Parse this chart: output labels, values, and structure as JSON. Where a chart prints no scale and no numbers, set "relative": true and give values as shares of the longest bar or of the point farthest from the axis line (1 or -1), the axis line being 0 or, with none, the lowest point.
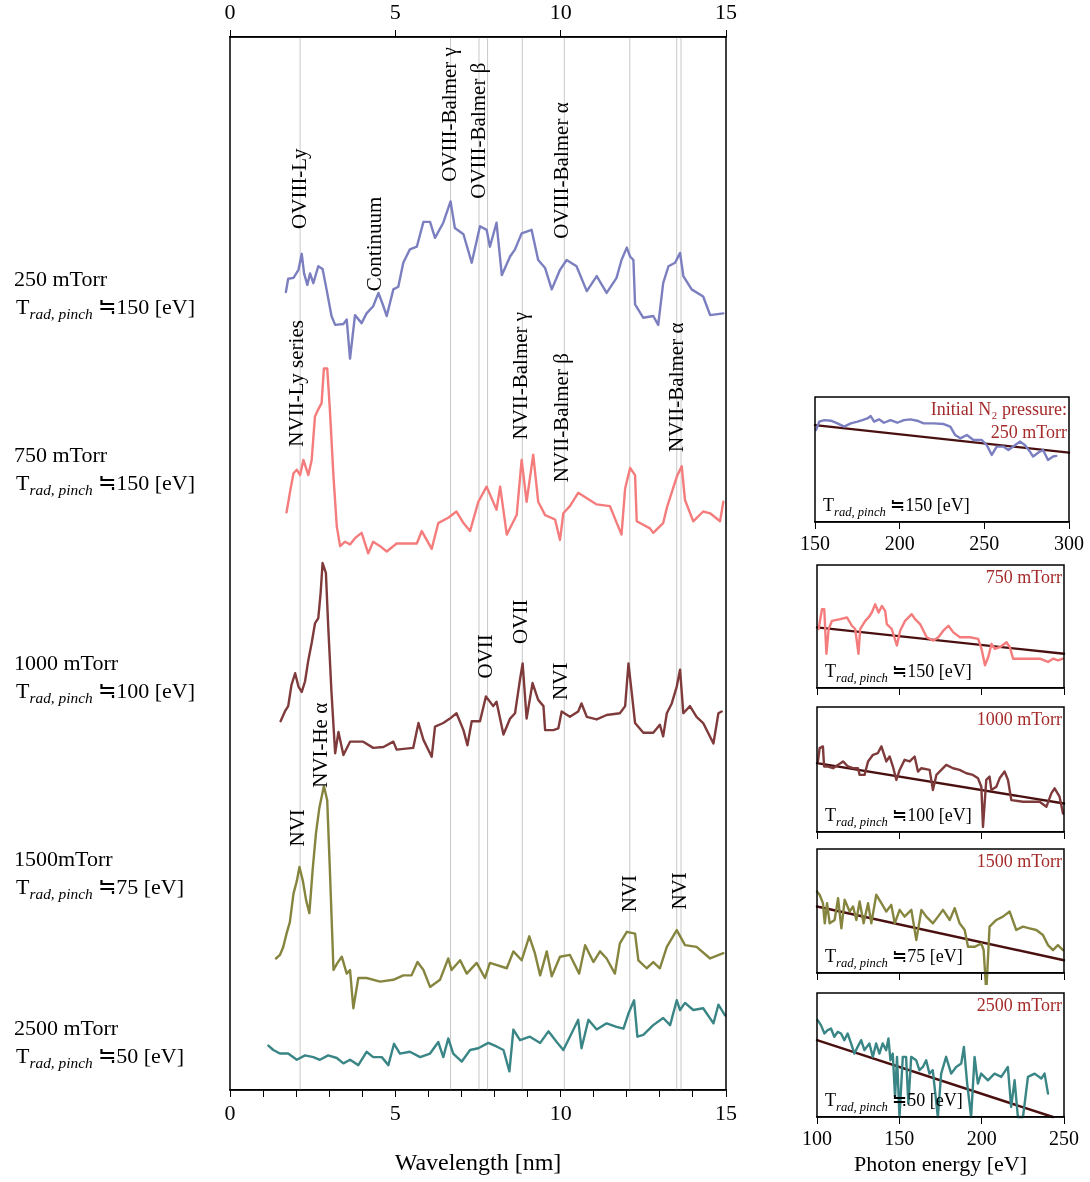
{
  "chart_data": [
    {
      "type": "line",
      "xlabel": "Wavelength [nm]",
      "relative": true,
      "xlim": [
        0,
        15
      ],
      "xticks": [
        0,
        {
          "value": 1,
          "label": null
        },
        {
          "value": 2,
          "label": null
        },
        {
          "value": 3,
          "label": null
        },
        {
          "value": 4,
          "label": null
        },
        5,
        {
          "value": 6,
          "label": null
        },
        {
          "value": 7,
          "label": null
        },
        {
          "value": 8,
          "label": null
        },
        {
          "value": 9,
          "label": null
        },
        10,
        {
          "value": 11,
          "label": null
        },
        {
          "value": 12,
          "label": null
        },
        {
          "value": 13,
          "label": null
        },
        {
          "value": 14,
          "label": null
        },
        15
      ],
      "x2lim": [
        0,
        15
      ],
      "x2ticks": [
        0,
        5,
        10,
        15
      ],
      "tick_labels": "x",
      "ref_lines": [
        {
          "axis": "x",
          "value": 2.12,
          "color": "#c8c8c8"
        },
        {
          "axis": "x",
          "value": 6.67,
          "color": "#c8c8c8"
        },
        {
          "axis": "x",
          "value": 7.53,
          "color": "#c8c8c8"
        },
        {
          "axis": "x",
          "value": 7.79,
          "color": "#c8c8c8"
        },
        {
          "axis": "x",
          "value": 8.84,
          "color": "#c8c8c8"
        },
        {
          "axis": "x",
          "value": 10.11,
          "color": "#c8c8c8"
        },
        {
          "axis": "x",
          "value": 12.09,
          "color": "#c8c8c8"
        },
        {
          "axis": "x",
          "value": 13.51,
          "color": "#c8c8c8"
        },
        {
          "axis": "x",
          "value": 13.64,
          "color": "#c8c8c8"
        }
      ],
      "annotations": [
        "250 mTorr",
        "T$_{rad, pinch}$ ≒150 [eV]",
        "750 mTorr",
        "T$_{rad, pinch}$ ≒150 [eV]",
        "1000 mTorr",
        "T$_{rad, pinch}$ ≒100 [eV]",
        "1500mTorr",
        "T$_{rad, pinch}$ ≒75 [eV]",
        "2500 mTorr",
        "T$_{rad, pinch}$ ≒50 [eV]",
        {
          "text": "OVIII-Ly",
          "x": 2.12,
          "y": 0.96
        },
        {
          "text": "Continuum",
          "x": 4.41,
          "y": 0.89
        },
        {
          "text": "OVIII-Balmer γ",
          "x": 6.67,
          "y": 1.013
        },
        {
          "text": "OVIII-Balmer β",
          "x": 7.53,
          "y": 0.994
        },
        {
          "text": "OVIII-Balmer α",
          "x": 10.07,
          "y": 0.949
        },
        {
          "text": "NVII-Ly series",
          "x": 2.03,
          "y": 0.715
        },
        {
          "text": "NVII-Balmer γ",
          "x": 8.8,
          "y": 0.723
        },
        {
          "text": "NVII-Balmer β",
          "x": 10.04,
          "y": 0.675
        },
        {
          "text": "NVII-Balmer α",
          "x": 13.52,
          "y": 0.709
        },
        {
          "text": "OVII",
          "x": 7.77,
          "y": 0.454
        },
        {
          "text": "OVII",
          "x": 8.83,
          "y": 0.493
        },
        {
          "text": "NVI",
          "x": 10.01,
          "y": 0.43
        },
        {
          "text": "NVI-He α",
          "x": 2.78,
          "y": 0.331
        },
        {
          "text": "NVI",
          "x": 2.06,
          "y": 0.265
        },
        {
          "text": "NVI",
          "x": 12.1,
          "y": 0.191
        },
        {
          "text": "NVI",
          "x": 13.61,
          "y": 0.194
        }
      ],
      "series": [
        {
          "color": "#7b7fbf",
          "x": [
            1.69,
            1.76,
            1.92,
            2.07,
            2.17,
            2.24,
            2.34,
            2.42,
            2.52,
            2.67,
            2.8,
            2.92,
            3.07,
            3.18,
            3.43,
            3.53,
            3.63,
            3.78,
            3.98,
            4.13,
            4.33,
            4.49,
            4.64,
            4.74,
            4.94,
            5.09,
            5.24,
            5.44,
            5.65,
            5.85,
            6.05,
            6.2,
            6.45,
            6.67,
            6.8,
            7.06,
            7.31,
            7.56,
            7.76,
            7.86,
            8.06,
            8.22,
            8.47,
            8.62,
            8.82,
            9.12,
            9.32,
            9.53,
            9.73,
            9.98,
            10.18,
            10.48,
            10.79,
            11.09,
            11.39,
            11.69,
            11.84,
            12.0,
            12.1,
            12.2,
            12.25,
            12.5,
            12.8,
            12.95,
            13.1,
            13.26,
            13.46,
            13.61,
            13.71,
            13.96,
            14.31,
            14.52,
            14.92
          ],
          "values": [
            0.898,
            0.913,
            0.914,
            0.923,
            0.941,
            0.919,
            0.906,
            0.919,
            0.908,
            0.927,
            0.924,
            0.901,
            0.871,
            0.861,
            0.862,
            0.867,
            0.823,
            0.872,
            0.863,
            0.874,
            0.882,
            0.897,
            0.882,
            0.871,
            0.901,
            0.904,
            0.931,
            0.946,
            0.949,
            0.977,
            0.977,
            0.959,
            0.976,
            1.0,
            0.97,
            0.963,
            0.931,
            0.972,
            0.968,
            0.949,
            0.976,
            0.917,
            0.938,
            0.946,
            0.964,
            0.968,
            0.934,
            0.925,
            0.901,
            0.923,
            0.934,
            0.927,
            0.899,
            0.916,
            0.897,
            0.914,
            0.934,
            0.948,
            0.938,
            0.934,
            0.884,
            0.869,
            0.871,
            0.861,
            0.908,
            0.927,
            0.931,
            0.942,
            0.916,
            0.901,
            0.893,
            0.872,
            0.874
          ]
        },
        {
          "color": "#f47c7c",
          "x": [
            1.71,
            1.81,
            1.92,
            2.02,
            2.12,
            2.22,
            2.37,
            2.47,
            2.57,
            2.67,
            2.77,
            2.84,
            2.94,
            3.02,
            3.13,
            3.23,
            3.33,
            3.48,
            3.63,
            3.78,
            3.98,
            4.18,
            4.33,
            4.54,
            4.74,
            5.04,
            5.65,
            5.8,
            6.1,
            6.3,
            6.6,
            6.85,
            7.06,
            7.26,
            7.51,
            7.76,
            8.06,
            8.17,
            8.37,
            8.67,
            8.82,
            8.97,
            9.17,
            9.32,
            9.53,
            9.83,
            9.98,
            10.08,
            10.28,
            10.53,
            11.09,
            11.49,
            11.84,
            11.95,
            12.1,
            12.25,
            12.3,
            12.7,
            12.8,
            13.1,
            13.21,
            13.51,
            13.66,
            13.76,
            14.01,
            14.31,
            14.52,
            14.82,
            14.92
          ],
          "values": [
            0.65,
            0.672,
            0.694,
            0.698,
            0.692,
            0.709,
            0.692,
            0.709,
            0.758,
            0.766,
            0.773,
            0.812,
            0.812,
            0.766,
            0.69,
            0.634,
            0.612,
            0.617,
            0.614,
            0.621,
            0.627,
            0.604,
            0.617,
            0.612,
            0.606,
            0.615,
            0.615,
            0.629,
            0.609,
            0.638,
            0.644,
            0.651,
            0.638,
            0.629,
            0.662,
            0.679,
            0.653,
            0.679,
            0.625,
            0.647,
            0.709,
            0.662,
            0.715,
            0.662,
            0.647,
            0.642,
            0.619,
            0.649,
            0.657,
            0.672,
            0.659,
            0.657,
            0.625,
            0.677,
            0.7,
            0.692,
            0.64,
            0.632,
            0.627,
            0.638,
            0.655,
            0.69,
            0.702,
            0.664,
            0.64,
            0.651,
            0.649,
            0.64,
            0.662
          ]
        },
        {
          "color": "#7f3b3b",
          "x": [
            1.53,
            1.66,
            1.76,
            1.86,
            1.97,
            2.07,
            2.17,
            2.27,
            2.37,
            2.47,
            2.57,
            2.67,
            2.74,
            2.8,
            2.9,
            2.97,
            3.07,
            3.18,
            3.28,
            3.43,
            3.63,
            4.03,
            4.33,
            4.64,
            4.94,
            5.04,
            5.54,
            5.7,
            5.85,
            6.1,
            6.2,
            6.45,
            6.65,
            6.85,
            7.06,
            7.18,
            7.31,
            7.56,
            7.74,
            7.96,
            8.06,
            8.27,
            8.47,
            8.62,
            8.77,
            8.85,
            8.97,
            9.15,
            9.32,
            9.48,
            9.53,
            9.78,
            9.93,
            10.03,
            10.28,
            10.53,
            10.63,
            10.79,
            11.09,
            11.39,
            11.79,
            11.95,
            12.05,
            12.15,
            12.25,
            12.5,
            12.8,
            13.0,
            13.1,
            13.21,
            13.36,
            13.51,
            13.61,
            13.71,
            13.91,
            14.11,
            14.31,
            14.62,
            14.77,
            14.87
          ],
          "values": [
            0.415,
            0.426,
            0.432,
            0.456,
            0.469,
            0.454,
            0.448,
            0.46,
            0.484,
            0.503,
            0.525,
            0.531,
            0.559,
            0.593,
            0.582,
            0.522,
            0.447,
            0.379,
            0.403,
            0.377,
            0.392,
            0.392,
            0.385,
            0.386,
            0.392,
            0.383,
            0.385,
            0.413,
            0.394,
            0.375,
            0.409,
            0.413,
            0.418,
            0.424,
            0.405,
            0.388,
            0.415,
            0.415,
            0.443,
            0.432,
            0.437,
            0.4,
            0.418,
            0.424,
            0.462,
            0.48,
            0.418,
            0.458,
            0.439,
            0.432,
            0.405,
            0.405,
            0.407,
            0.426,
            0.42,
            0.426,
            0.435,
            0.42,
            0.417,
            0.422,
            0.424,
            0.432,
            0.48,
            0.447,
            0.413,
            0.402,
            0.402,
            0.411,
            0.398,
            0.424,
            0.435,
            0.454,
            0.473,
            0.424,
            0.432,
            0.42,
            0.413,
            0.39,
            0.424,
            0.426
          ]
        },
        {
          "color": "#86853f",
          "x": [
            1.39,
            1.51,
            1.61,
            1.71,
            1.81,
            1.92,
            2.02,
            2.1,
            2.2,
            2.3,
            2.4,
            2.5,
            2.6,
            2.7,
            2.84,
            2.94,
            3.02,
            3.13,
            3.25,
            3.38,
            3.53,
            3.63,
            3.73,
            3.88,
            4.13,
            4.54,
            4.94,
            5.24,
            5.49,
            5.67,
            5.85,
            6.05,
            6.35,
            6.6,
            6.7,
            6.96,
            7.16,
            7.46,
            7.71,
            7.86,
            8.37,
            8.57,
            8.82,
            9.05,
            9.22,
            9.38,
            9.58,
            9.73,
            9.98,
            10.28,
            10.56,
            10.74,
            10.99,
            11.19,
            11.39,
            11.64,
            11.79,
            12.0,
            12.25,
            12.35,
            12.6,
            12.8,
            13.0,
            13.21,
            13.51,
            13.76,
            14.11,
            14.52,
            14.92
          ],
          "values": [
            0.148,
            0.152,
            0.161,
            0.176,
            0.189,
            0.221,
            0.235,
            0.251,
            0.236,
            0.214,
            0.199,
            0.248,
            0.289,
            0.317,
            0.342,
            0.326,
            0.248,
            0.135,
            0.143,
            0.15,
            0.131,
            0.135,
            0.092,
            0.126,
            0.126,
            0.122,
            0.124,
            0.129,
            0.129,
            0.144,
            0.135,
            0.116,
            0.124,
            0.148,
            0.135,
            0.146,
            0.131,
            0.143,
            0.126,
            0.143,
            0.137,
            0.156,
            0.146,
            0.173,
            0.154,
            0.129,
            0.156,
            0.128,
            0.15,
            0.152,
            0.131,
            0.163,
            0.144,
            0.156,
            0.148,
            0.131,
            0.165,
            0.178,
            0.176,
            0.146,
            0.137,
            0.144,
            0.137,
            0.161,
            0.18,
            0.163,
            0.161,
            0.148,
            0.154
          ]
        },
        {
          "color": "#3a8585",
          "x": [
            1.16,
            1.31,
            1.51,
            1.76,
            2.02,
            2.27,
            2.52,
            2.72,
            2.97,
            3.23,
            3.43,
            3.63,
            3.88,
            4.13,
            4.33,
            4.59,
            4.79,
            4.96,
            5.14,
            5.44,
            5.75,
            6.05,
            6.3,
            6.45,
            6.6,
            6.75,
            7.01,
            7.26,
            7.51,
            7.81,
            8.06,
            8.27,
            8.45,
            8.57,
            8.77,
            9.07,
            9.38,
            9.63,
            9.88,
            10.08,
            10.28,
            10.53,
            10.63,
            10.84,
            11.09,
            11.39,
            11.69,
            11.9,
            12.05,
            12.22,
            12.32,
            12.5,
            12.8,
            13.1,
            13.31,
            13.51,
            13.61,
            13.76,
            14.01,
            14.31,
            14.62,
            14.77,
            14.97
          ],
          "values": [
            0.05,
            0.045,
            0.041,
            0.041,
            0.034,
            0.039,
            0.037,
            0.034,
            0.039,
            0.036,
            0.03,
            0.034,
            0.028,
            0.043,
            0.037,
            0.037,
            0.028,
            0.052,
            0.041,
            0.043,
            0.037,
            0.041,
            0.054,
            0.037,
            0.058,
            0.041,
            0.032,
            0.045,
            0.047,
            0.053,
            0.049,
            0.045,
            0.021,
            0.068,
            0.056,
            0.06,
            0.053,
            0.066,
            0.054,
            0.045,
            0.06,
            0.079,
            0.047,
            0.079,
            0.068,
            0.075,
            0.071,
            0.069,
            0.086,
            0.101,
            0.06,
            0.062,
            0.073,
            0.081,
            0.073,
            0.101,
            0.09,
            0.098,
            0.09,
            0.092,
            0.075,
            0.096,
            0.084
          ]
        }
      ]
    },
    {
      "type": "line",
      "relative": true,
      "xlim": [
        150,
        300
      ],
      "xticks": [
        150,
        200,
        250,
        300
      ],
      "tick_labels": "x",
      "annotations": [
        "Initial N₂ pressure:",
        "250 mTorr",
        "T$_{rad, pinch}$ ≒150 [eV]"
      ],
      "series": [
        {
          "color": "#7b7fbf",
          "x": [
            150.6,
            152.5,
            155.5,
            159.4,
            163.3,
            167.2,
            171.1,
            175.1,
            178.0,
            180.9,
            182.9,
            184.9,
            187.8,
            190.7,
            194.6,
            198.6,
            202.5,
            206.4,
            210.3,
            214.2,
            220.1,
            226.0,
            229.9,
            232.8,
            235.8,
            239.7,
            243.6,
            248.5,
            251.4,
            254.4,
            257.3,
            261.2,
            264.2,
            267.1,
            271.0,
            273.9,
            276.9,
            278.8,
            282.8,
            284.7,
            287.6,
            290.6,
            292.5
          ],
          "values": [
            0.868,
            0.947,
            0.962,
            0.956,
            0.931,
            0.9,
            0.931,
            0.947,
            0.962,
            0.978,
            1.0,
            0.947,
            0.969,
            0.937,
            0.962,
            0.937,
            0.962,
            0.969,
            0.956,
            0.931,
            0.931,
            0.925,
            0.9,
            0.821,
            0.79,
            0.821,
            0.774,
            0.774,
            0.727,
            0.633,
            0.712,
            0.712,
            0.68,
            0.712,
            0.759,
            0.727,
            0.665,
            0.618,
            0.665,
            0.68,
            0.586,
            0.618,
            0.624
          ]
        },
        {
          "type": "line",
          "color": "#4a1010",
          "x": [
            150,
            300
          ],
          "values": [
            0.915,
            0.655
          ]
        }
      ]
    },
    {
      "type": "line",
      "relative": true,
      "xlim": [
        100,
        250
      ],
      "xticks": [
        100,
        150,
        200,
        250
      ],
      "tick_labels": false,
      "annotations": [
        "750 mTorr",
        "T$_{rad, pinch}$ ≒150 [eV]"
      ],
      "series": [
        {
          "color": "#f47c7c",
          "x": [
            101.0,
            103.0,
            104.4,
            105.7,
            107.1,
            109.1,
            114.1,
            118.2,
            121.2,
            123.2,
            125.2,
            126.2,
            129.3,
            131.3,
            133.3,
            135.3,
            137.4,
            139.4,
            141.4,
            142.4,
            145.4,
            148.5,
            150.5,
            153.5,
            157.5,
            159.6,
            162.6,
            166.6,
            170.7,
            173.7,
            176.7,
            179.8,
            182.8,
            186.8,
            192.9,
            197.9,
            199.9,
            202.0,
            204.0,
            206.0,
            208.0,
            211.0,
            215.1,
            217.1,
            219.1,
            225.2,
            235.3,
            240.3,
            243.3,
            246.4,
            249.4
          ],
          "values": [
            0.705,
            0.941,
            0.941,
            0.409,
            0.705,
            0.803,
            0.823,
            0.843,
            0.744,
            0.705,
            0.409,
            0.705,
            0.803,
            0.843,
            0.902,
            1.0,
            0.902,
            0.98,
            0.921,
            0.764,
            0.705,
            0.508,
            0.685,
            0.803,
            0.882,
            0.823,
            0.764,
            0.606,
            0.567,
            0.606,
            0.685,
            0.744,
            0.665,
            0.606,
            0.606,
            0.587,
            0.469,
            0.272,
            0.37,
            0.528,
            0.469,
            0.488,
            0.547,
            0.488,
            0.35,
            0.35,
            0.35,
            0.311,
            0.35,
            0.331,
            0.35
          ]
        },
        {
          "type": "line",
          "color": "#4a1010",
          "x": [
            100,
            250
          ],
          "values": [
            0.724,
            0.409
          ]
        }
      ]
    },
    {
      "type": "line",
      "relative": true,
      "xlim": [
        100,
        250
      ],
      "xticks": [
        100,
        150,
        200,
        250
      ],
      "tick_labels": false,
      "annotations": [
        "1000 mTorr",
        "T$_{rad, pinch}$ ≒100 [eV]"
      ],
      "series": [
        {
          "color": "#7f3b3b",
          "x": [
            100.6,
            101.6,
            103.6,
            104.3,
            106.7,
            109.7,
            112.8,
            115.8,
            118.8,
            121.9,
            124.9,
            125.9,
            128.9,
            131.0,
            134.0,
            137.0,
            139.1,
            142.1,
            144.1,
            146.1,
            148.2,
            150.2,
            153.2,
            156.3,
            159.3,
            161.3,
            163.4,
            168.4,
            170.4,
            172.5,
            175.5,
            178.5,
            182.6,
            186.6,
            190.7,
            194.7,
            197.8,
            199.8,
            200.8,
            202.8,
            204.8,
            205.9,
            208.9,
            210.9,
            213.9,
            216.0,
            218.0,
            225.1,
            235.2,
            239.3,
            242.3,
            244.3,
            247.3,
            249.4
          ],
          "values": [
            0.824,
            0.98,
            1.0,
            0.765,
            0.765,
            0.745,
            0.784,
            0.824,
            0.765,
            0.745,
            0.745,
            0.667,
            0.667,
            0.824,
            0.902,
            0.922,
            1.0,
            0.824,
            0.882,
            0.765,
            0.608,
            0.725,
            0.843,
            0.824,
            0.882,
            0.706,
            0.745,
            0.725,
            0.49,
            0.667,
            0.725,
            0.784,
            0.745,
            0.725,
            0.686,
            0.667,
            0.627,
            0.529,
            0.059,
            0.608,
            0.647,
            0.49,
            0.529,
            0.627,
            0.706,
            0.608,
            0.373,
            0.353,
            0.353,
            0.294,
            0.451,
            0.51,
            0.412,
            0.216
          ]
        },
        {
          "type": "line",
          "color": "#4a1010",
          "x": [
            100,
            250
          ],
          "values": [
            0.804,
            0.333
          ]
        }
      ]
    },
    {
      "type": "line",
      "relative": true,
      "xlim": [
        100,
        250
      ],
      "xticks": [
        100,
        150,
        200,
        250
      ],
      "tick_labels": false,
      "annotations": [
        "1500 mTorr",
        "T$_{rad, pinch}$ ≒75 [eV]"
      ],
      "series": [
        {
          "color": "#86853f",
          "x": [
            100.0,
            101.6,
            103.6,
            104.7,
            106.1,
            107.7,
            110.7,
            112.8,
            114.8,
            116.8,
            119.8,
            121.9,
            123.9,
            125.9,
            128.3,
            131.0,
            133.0,
            136.0,
            139.1,
            142.1,
            145.1,
            147.2,
            150.2,
            153.2,
            157.3,
            160.3,
            163.4,
            166.4,
            170.4,
            173.5,
            176.5,
            180.6,
            183.6,
            186.6,
            189.7,
            191.7,
            195.7,
            199.8,
            201.2,
            202.8,
            204.8,
            208.9,
            212.9,
            217.0,
            221.0,
            225.1,
            229.1,
            233.2,
            237.2,
            240.3,
            243.3,
            246.3,
            249.4
          ],
          "values": [
            1.0,
            0.959,
            0.856,
            0.609,
            0.856,
            0.609,
            0.65,
            0.918,
            0.547,
            0.897,
            0.753,
            0.815,
            0.65,
            0.877,
            0.609,
            0.856,
            0.609,
            0.959,
            0.856,
            0.753,
            0.835,
            0.609,
            0.774,
            0.691,
            0.774,
            0.403,
            0.774,
            0.691,
            0.609,
            0.691,
            0.774,
            0.65,
            0.794,
            0.609,
            0.527,
            0.321,
            0.321,
            0.362,
            0.28,
            -0.235,
            0.568,
            0.65,
            0.691,
            0.753,
            0.527,
            0.568,
            0.547,
            0.527,
            0.465,
            0.342,
            0.28,
            0.342,
            0.28
          ]
        },
        {
          "type": "line",
          "color": "#4a1010",
          "x": [
            100,
            250
          ],
          "values": [
            0.815,
            0.156
          ]
        }
      ]
    },
    {
      "type": "line",
      "relative": true,
      "xlim": [
        100,
        250
      ],
      "xticks": [
        100,
        150,
        200,
        250
      ],
      "tick_labels": "x",
      "xlabel": "Photon energy [eV]",
      "annotations": [
        "2500 mTorr",
        "T$_{rad, pinch}$ ≒50 [eV]"
      ],
      "series": [
        {
          "color": "#3a8585",
          "x": [
            100.4,
            102.4,
            104.5,
            106.5,
            108.5,
            110.5,
            112.6,
            114.6,
            116.6,
            118.6,
            120.7,
            122.7,
            124.7,
            126.8,
            128.8,
            131.8,
            133.9,
            135.9,
            137.9,
            139.9,
            142.0,
            143.4,
            144.6,
            146.0,
            147.4,
            148.6,
            150.1,
            152.1,
            154.1,
            155.5,
            157.2,
            160.2,
            162.2,
            164.3,
            166.3,
            168.3,
            170.3,
            173.4,
            175.4,
            178.4,
            181.5,
            184.5,
            187.6,
            189.2,
            191.2,
            193.6,
            195.7,
            197.7,
            199.7,
            203.8,
            207.8,
            211.9,
            215.9,
            217.9,
            220.0,
            222.0,
            225.1,
            228.1,
            232.2,
            236.2,
            238.2,
            240.3
          ],
          "values": [
            1.0,
            0.948,
            0.862,
            0.897,
            0.914,
            0.828,
            0.879,
            0.862,
            0.793,
            0.862,
            0.759,
            0.655,
            0.724,
            0.793,
            0.69,
            0.759,
            0.621,
            0.759,
            0.655,
            0.759,
            0.69,
            0.81,
            0.586,
            0.655,
            0.207,
            0.621,
            0,
            0.621,
            0.621,
            0.138,
            0.621,
            0.586,
            0.483,
            0.517,
            0.586,
            0.448,
            0.483,
            0,
            0.448,
            0.621,
            0.448,
            0.517,
            0.552,
            0.724,
            0.345,
            0,
            0.621,
            0.345,
            0.448,
            0.379,
            0.448,
            0.414,
            0.517,
            0.103,
            0.379,
            0,
            0,
            0.414,
            0.448,
            0.397,
            0.448,
            0.241
          ]
        },
        {
          "type": "line",
          "color": "#4a1010",
          "x": [
            100,
            243.3
          ],
          "values": [
            0.793,
            0
          ]
        }
      ]
    }
  ]
}
